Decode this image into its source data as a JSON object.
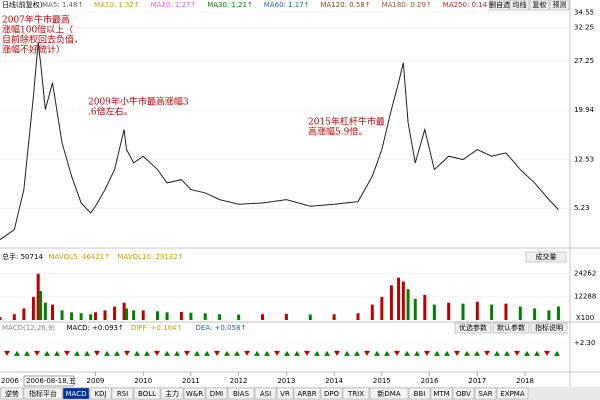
{
  "header": {
    "period": "日线(前复权)",
    "ma": [
      {
        "label": "MA5: 1.48↑",
        "color": "#606060"
      },
      {
        "label": "MA10: 1.32↑",
        "color": "#c0a000"
      },
      {
        "label": "MA20: 1.27↑",
        "color": "#e060e0"
      },
      {
        "label": "MA30: 1.21↑",
        "color": "#008000"
      },
      {
        "label": "MA60: 1.17↑",
        "color": "#2060c0"
      },
      {
        "label": "MA120: 0.58↑",
        "color": "#8b4513"
      },
      {
        "label": "MA180: 0.29↑",
        "color": "#a0522d"
      },
      {
        "label": "MA250: 0.14↑",
        "color": "#c02020"
      }
    ],
    "buttons": [
      "删自选",
      "均线",
      "复权",
      "预测"
    ]
  },
  "annotations": [
    "2007年牛市最高涨幅100倍以上（目前除权回去负值，涨幅不好统计）",
    "2009年小牛市最高涨幅3.6倍左右。",
    "2015年杠杆牛市最高涨幅5.9倍。"
  ],
  "price": {
    "color": "#202020",
    "ylim": [
      0,
      35.5
    ],
    "yticks": [
      34.55,
      32.25,
      27.25,
      19.94,
      12.53,
      5.23
    ],
    "x": [
      2007.0,
      2007.3,
      2007.5,
      2007.7,
      2007.8,
      2007.85,
      2007.95,
      2008.1,
      2008.3,
      2008.5,
      2008.7,
      2008.9,
      2009.0,
      2009.2,
      2009.4,
      2009.6,
      2009.65,
      2009.8,
      2010.0,
      2010.3,
      2010.5,
      2010.8,
      2011.0,
      2011.3,
      2011.6,
      2012.0,
      2012.5,
      2013.0,
      2013.5,
      2014.0,
      2014.5,
      2014.8,
      2015.0,
      2015.2,
      2015.35,
      2015.45,
      2015.55,
      2015.7,
      2015.9,
      2016.1,
      2016.4,
      2016.7,
      2017.0,
      2017.3,
      2017.6,
      2017.9,
      2018.2,
      2018.5,
      2018.7
    ],
    "values": [
      0.5,
      2,
      8,
      22,
      30,
      27,
      20,
      24,
      15,
      10,
      6,
      4.5,
      5.5,
      8,
      11,
      17,
      14,
      12,
      13,
      11,
      9,
      9.5,
      8,
      7.5,
      6.5,
      5.8,
      6,
      6.5,
      5.5,
      5.8,
      6.2,
      10,
      14,
      20,
      24,
      27,
      18,
      12,
      17,
      11,
      13,
      12.5,
      14,
      13,
      13.5,
      11,
      9,
      6.5,
      5
    ]
  },
  "xlim": [
    2007,
    2018.9
  ],
  "xticks": [
    2009,
    2010,
    2011,
    2012,
    2013,
    2014,
    2015,
    2016,
    2017,
    2018
  ],
  "x_start_label": "2006",
  "crosshair_date": "2006-08-18,五",
  "volume": {
    "header": [
      "总手: 50714",
      "MAVOL5: 46421↑",
      "MAVOL10: 29132↑"
    ],
    "button": "成交量",
    "unit": "X100",
    "ylim": [
      0,
      27000
    ],
    "yticks": [
      12288,
      24262
    ],
    "values": [
      1500,
      3000,
      6000,
      12000,
      24000,
      15000,
      9000,
      8000,
      5000,
      4000,
      3500,
      3000,
      4000,
      5000,
      7000,
      9000,
      6000,
      5000,
      5000,
      4500,
      4000,
      4200,
      3800,
      3500,
      3000,
      2800,
      3000,
      3200,
      2900,
      3000,
      3500,
      8000,
      12000,
      18000,
      22000,
      20000,
      16000,
      11000,
      13000,
      8000,
      9000,
      8500,
      9500,
      8000,
      8500,
      7000,
      6000,
      5000,
      7000
    ],
    "up_color": "#c00000",
    "down_color": "#008000"
  },
  "macd": {
    "header": [
      "MACD(12,26,9)",
      "MACD: +0.093↑",
      "DIFF: +0.104↑",
      "DEA: +0.058↑"
    ],
    "buttons": [
      "优选参数",
      "默认参数",
      "指标说明"
    ],
    "ylim": [
      -2.5,
      3.5
    ],
    "yticks": [
      {
        "value": 2.3,
        "label": "+2.30"
      }
    ]
  },
  "tabs": [
    "逆势",
    "指标平台",
    "MACD",
    "KDJ",
    "RSI",
    "BOLL",
    "主力",
    "W&R",
    "DMI",
    "BIAS",
    "ASI",
    "VR",
    "ARBR",
    "DPO",
    "TRIX",
    "新DMA",
    "BBI",
    "MTM",
    "OBV",
    "SAR",
    "EXPMA"
  ]
}
